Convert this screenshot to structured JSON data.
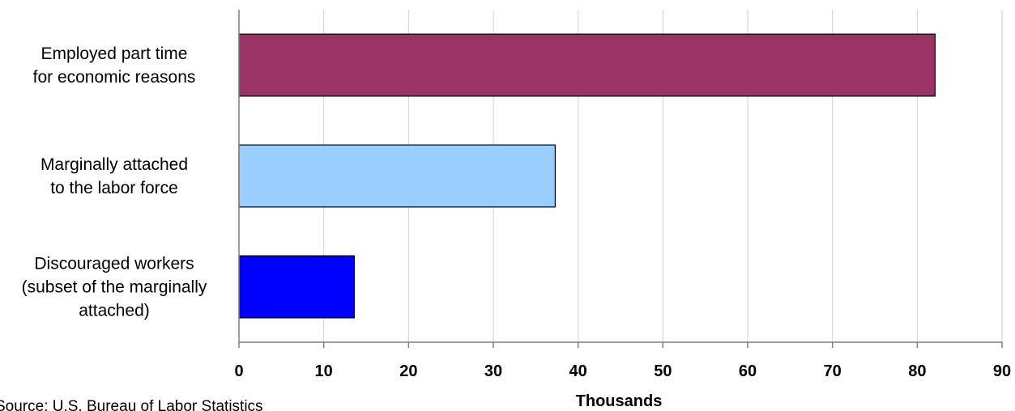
{
  "chart_data": {
    "type": "bar",
    "orientation": "horizontal",
    "categories": [
      [
        "Employed part time",
        "for economic reasons"
      ],
      [
        "Marginally attached",
        "to the labor force"
      ],
      [
        "Discouraged workers",
        "(subset of the marginally",
        "attached)"
      ]
    ],
    "values": [
      82.1,
      37.3,
      13.6
    ],
    "colors": [
      "#993366",
      "#99ccff",
      "#0000ff"
    ],
    "xlabel": "Thousands",
    "xlim": [
      0,
      90
    ],
    "xticks": [
      0,
      10,
      20,
      30,
      40,
      50,
      60,
      70,
      80,
      90
    ],
    "grid": "vertical",
    "legend": "none"
  },
  "source": "Source: U.S. Bureau of Labor Statistics"
}
